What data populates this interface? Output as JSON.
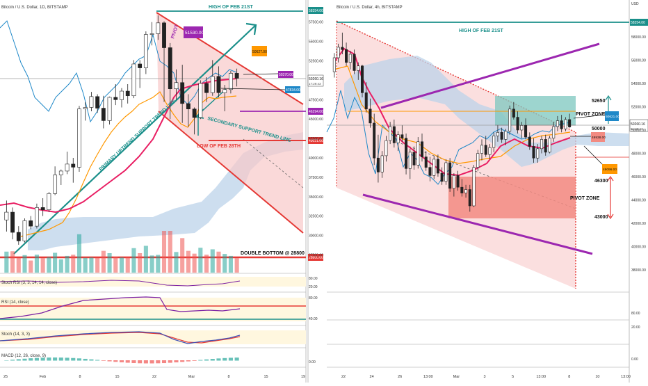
{
  "colors": {
    "up": "#26a69a",
    "down": "#ef5350",
    "candle_body_up": "#ffffff",
    "candle_body_down": "#222222",
    "teal": "#1a8f8a",
    "red": "#e53935",
    "purple": "#9c27b0",
    "magenta": "#e91e63",
    "orange": "#ff9800",
    "cloud": "#bcd3ea",
    "channel": "#f8c9c9",
    "blue_line": "#1e88c8",
    "pivot": "#f28b82",
    "pivot_top": "#7cc7bf"
  },
  "left": {
    "header": "Bitcoin / U.S. Dollar, 1D, BITSTAMP",
    "annotations": {
      "high": "HIGH OF FEB 21ST",
      "uptrend": "PRIMARY UPTREND SUPPORT TREND LINE",
      "secondary": "SECONDARY SUPPORT TREND LINE",
      "low": "LOW OF FEB 28TH",
      "double_bottom": "DOUBLE BOTTOM @ 28800",
      "pivot_tag": "PIVOT"
    },
    "price_tags": [
      "51530.00",
      "50627.00",
      "50370.00",
      "47834.00",
      "46294.00",
      "43021.00"
    ],
    "axis_tags": [
      "58354.00",
      "50260.16",
      "28800.00"
    ],
    "axis_tag_sub": "17:29:43",
    "y_ticks": [
      "57500.00",
      "55000.00",
      "52500.00",
      "47500.00",
      "45000.00",
      "42500.00",
      "40000.00",
      "37500.00",
      "35000.00",
      "32500.00",
      "30000.00",
      "27500.00"
    ],
    "x_ticks": [
      "25",
      "Feb",
      "8",
      "15",
      "22",
      "Mar",
      "8",
      "15",
      "19"
    ],
    "indicators": {
      "stoch_rsi": "Stoch RSI (3, 3, 14, 14, close)",
      "rsi": "RSI (14, close)",
      "stoch": "Stoch (14, 3, 3)",
      "macd": "MACD (12, 26, close, 9)"
    },
    "indicator_values": [
      "80.00",
      "20.00",
      "80.00",
      "40.00",
      "0.00"
    ]
  },
  "right": {
    "header": "Bitcoin / U.S. Dollar, 4h, BITSTAMP",
    "annotations": {
      "high": "HIGH OF FEB 21ST",
      "pivot_zone_top": "PIVOT ZONE",
      "pivot_zone_bottom": "PIVOT ZONE",
      "lvl_52650": "52650",
      "lvl_50000": "50000",
      "lvl_46300": "46300",
      "lvl_43000": "43000"
    },
    "price_tags": [
      "50621.00",
      "49938.00",
      "49096.00"
    ],
    "axis_tags": [
      "58354.00",
      "50260.16"
    ],
    "axis_tag_sub": "01:29:43",
    "y_ticks": [
      "58000.00",
      "56000.00",
      "54000.00",
      "52000.00",
      "50000.00",
      "48000.00",
      "46000.00",
      "44000.00",
      "42000.00",
      "40000.00",
      "38000.00"
    ],
    "axis_header": "USD",
    "indicator_values": [
      "80.00",
      "20.00",
      "0.00"
    ],
    "x_ticks": [
      "22",
      "24",
      "26",
      "13:00",
      "Mar",
      "3",
      "5",
      "13:00",
      "8",
      "10",
      "13:00"
    ]
  },
  "chart_data": [
    {
      "type": "candlestick",
      "title": "Bitcoin / U.S. Dollar, 1D, BITSTAMP",
      "ylim": [
        27000,
        59000
      ],
      "series": [
        {
          "name": "BTCUSD 1D",
          "ohlc": [
            [
              32000,
              34500,
              30500,
              33000
            ],
            [
              33000,
              33600,
              29500,
              30400
            ],
            [
              30400,
              31200,
              28800,
              29300
            ],
            [
              29300,
              32200,
              29100,
              31900
            ],
            [
              31900,
              32500,
              30800,
              31200
            ],
            [
              31200,
              34100,
              30900,
              33600
            ],
            [
              33600,
              34800,
              32500,
              33300
            ],
            [
              33300,
              35600,
              33000,
              35400
            ],
            [
              35400,
              38900,
              35200,
              37800
            ],
            [
              37800,
              38500,
              36500,
              38300
            ],
            [
              38300,
              40800,
              37900,
              39200
            ],
            [
              39200,
              40000,
              36800,
              38800
            ],
            [
              38800,
              46700,
              38200,
              46300
            ],
            [
              46300,
              47200,
              44800,
              46500
            ],
            [
              46500,
              48500,
              46000,
              47900
            ],
            [
              47900,
              48200,
              45800,
              46400
            ],
            [
              46400,
              48000,
              43800,
              44800
            ],
            [
              44800,
              47900,
              44300,
              47800
            ],
            [
              47800,
              49500,
              46800,
              47500
            ],
            [
              47500,
              49000,
              46500,
              48600
            ],
            [
              48600,
              49500,
              47000,
              48000
            ],
            [
              48000,
              52600,
              47700,
              52100
            ],
            [
              52100,
              52600,
              49000,
              51600
            ],
            [
              51600,
              56300,
              50800,
              55900
            ],
            [
              55900,
              57500,
              54500,
              56000
            ],
            [
              56000,
              58354,
              55200,
              57400
            ],
            [
              57400,
              57600,
              47200,
              54200
            ],
            [
              54200,
              54800,
              45000,
              48900
            ],
            [
              48900,
              51400,
              47500,
              49700
            ],
            [
              49700,
              52000,
              44500,
              47000
            ],
            [
              47000,
              48200,
              44000,
              46300
            ],
            [
              46300,
              46500,
              43021,
              45200
            ],
            [
              45200,
              50000,
              45000,
              49600
            ],
            [
              49600,
              50400,
              47200,
              48400
            ],
            [
              48400,
              52600,
              48000,
              50500
            ],
            [
              50500,
              51800,
              47800,
              48400
            ],
            [
              48400,
              49400,
              46000,
              48800
            ],
            [
              48800,
              51200,
              48300,
              50900
            ],
            [
              50900,
              51500,
              49200,
              50260
            ]
          ]
        }
      ]
    },
    {
      "type": "candlestick",
      "title": "Bitcoin / U.S. Dollar, 4h, BITSTAMP",
      "ylim": [
        37000,
        59600
      ],
      "series": [
        {
          "name": "BTCUSD 4h",
          "ohlc": [
            [
              55000,
              56600,
              54500,
              56200
            ],
            [
              56200,
              57400,
              55800,
              57100
            ],
            [
              57100,
              58354,
              56500,
              56900
            ],
            [
              56900,
              57500,
              55500,
              55800
            ],
            [
              55800,
              56800,
              55200,
              56500
            ],
            [
              56500,
              56900,
              54800,
              55100
            ],
            [
              55100,
              55800,
              54300,
              55500
            ],
            [
              55500,
              55600,
              52800,
              53200
            ],
            [
              53200,
              54100,
              51500,
              51800
            ],
            [
              51800,
              52700,
              50200,
              50600
            ],
            [
              50600,
              51400,
              47000,
              47600
            ],
            [
              47600,
              49600,
              45500,
              46400
            ],
            [
              46400,
              48200,
              45900,
              47800
            ],
            [
              47800,
              49500,
              47300,
              49100
            ],
            [
              49100,
              50700,
              48800,
              50300
            ],
            [
              50300,
              50900,
              48500,
              48900
            ],
            [
              48900,
              49900,
              48200,
              49600
            ],
            [
              49600,
              50400,
              49000,
              49300
            ],
            [
              49300,
              49700,
              46200,
              46700
            ],
            [
              46700,
              48400,
              45800,
              48100
            ],
            [
              48100,
              48600,
              46600,
              47000
            ],
            [
              47000,
              49400,
              46700,
              49000
            ],
            [
              49000,
              49700,
              47300,
              47700
            ],
            [
              47700,
              48200,
              46500,
              46800
            ],
            [
              46800,
              47700,
              45600,
              46100
            ],
            [
              46100,
              47800,
              45800,
              47500
            ],
            [
              47500,
              47900,
              46000,
              46300
            ],
            [
              46300,
              46800,
              45300,
              45600
            ],
            [
              45600,
              47500,
              45300,
              47200
            ],
            [
              47200,
              47600,
              44700,
              45000
            ],
            [
              45000,
              46300,
              44300,
              46100
            ],
            [
              46100,
              46500,
              44800,
              45100
            ],
            [
              45100,
              45800,
              44300,
              44600
            ],
            [
              44600,
              45300,
              44200,
              44900
            ],
            [
              44900,
              45300,
              43000,
              43500
            ],
            [
              43500,
              47000,
              43400,
              46800
            ],
            [
              46800,
              48300,
              46500,
              48000
            ],
            [
              48000,
              49200,
              47400,
              48700
            ],
            [
              48700,
              49500,
              47700,
              47900
            ],
            [
              47900,
              48800,
              47500,
              48500
            ],
            [
              48500,
              49800,
              48100,
              49500
            ],
            [
              49500,
              50400,
              49000,
              49800
            ],
            [
              49800,
              50200,
              48900,
              49200
            ],
            [
              49200,
              50100,
              48700,
              49900
            ],
            [
              49900,
              52100,
              49600,
              51800
            ],
            [
              51800,
              52400,
              50900,
              51100
            ],
            [
              51100,
              51600,
              49700,
              50000
            ],
            [
              50000,
              50700,
              49300,
              50400
            ],
            [
              50400,
              51000,
              49200,
              49400
            ],
            [
              49400,
              49800,
              48300,
              48600
            ],
            [
              48600,
              49300,
              47200,
              47600
            ],
            [
              47600,
              48800,
              47200,
              48400
            ],
            [
              48400,
              49500,
              48000,
              49200
            ],
            [
              49200,
              49600,
              47800,
              48100
            ],
            [
              48100,
              49500,
              48000,
              49300
            ],
            [
              49300,
              50700,
              49000,
              50300
            ],
            [
              50300,
              51200,
              49900,
              50800
            ],
            [
              50800,
              51300,
              49800,
              50100
            ],
            [
              50100,
              51100,
              49900,
              50900
            ],
            [
              50900,
              51400,
              50200,
              50260
            ]
          ]
        }
      ]
    }
  ]
}
